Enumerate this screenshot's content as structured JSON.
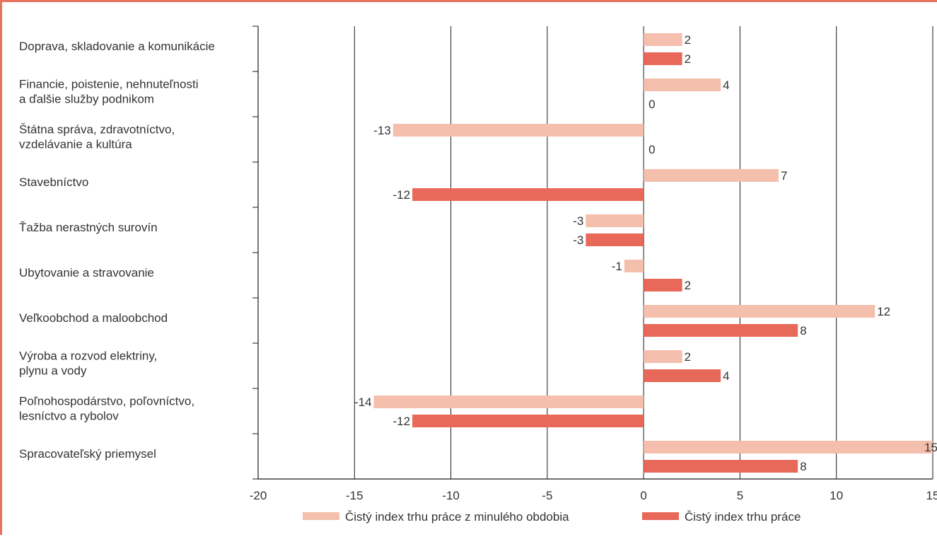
{
  "chart_data": {
    "type": "bar",
    "orientation": "horizontal",
    "categories": [
      [
        "Doprava, skladovanie a komunikácie"
      ],
      [
        "Financie, poistenie, nehnuteľnosti",
        "a ďalšie služby podnikom"
      ],
      [
        "Štátna správa, zdravotníctvo,",
        "vzdelávanie a kultúra"
      ],
      [
        "Stavebníctvo"
      ],
      [
        "Ťažba nerastných surovín"
      ],
      [
        "Ubytovanie a stravovanie"
      ],
      [
        "Veľkoobchod a maloobchod"
      ],
      [
        "Výroba a rozvod elektriny,",
        "plynu a vody"
      ],
      [
        "Poľnohospodárstvo, poľovníctvo,",
        "lesníctvo a rybolov"
      ],
      [
        "Spracovateľský priemysel"
      ]
    ],
    "series": [
      {
        "name": "Čistý index trhu práce z minulého obdobia",
        "color": "#f4bfad",
        "values": [
          2,
          4,
          -13,
          7,
          -3,
          -1,
          12,
          2,
          -14,
          15
        ]
      },
      {
        "name": "Čistý index trhu práce",
        "color": "#e8695a",
        "values": [
          2,
          0,
          0,
          -12,
          -3,
          2,
          8,
          4,
          -12,
          8
        ]
      }
    ],
    "xlim": [
      -20,
      15
    ],
    "xticks": [
      -20,
      -15,
      -10,
      -5,
      0,
      5,
      10,
      15
    ],
    "grid": true,
    "legend_position": "bottom",
    "title": "",
    "xlabel": "",
    "ylabel": ""
  }
}
